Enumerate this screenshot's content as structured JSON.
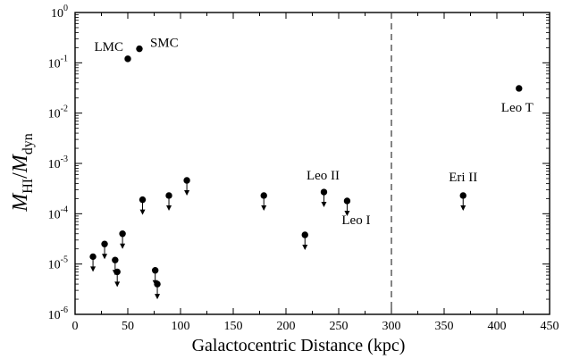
{
  "chart_data": {
    "type": "scatter",
    "title": "",
    "xlabel": "Galactocentric Distance (kpc)",
    "ylabel": {
      "main": "M",
      "sub1": "HI",
      "slash": "/",
      "main2": "M",
      "sub2": "dyn"
    },
    "x_range": [
      0,
      450
    ],
    "y_range": [
      1e-06,
      1
    ],
    "y_scale": "log",
    "grid": false,
    "legend": "none",
    "x_ticks": [
      0,
      50,
      100,
      150,
      200,
      250,
      300,
      350,
      400,
      450
    ],
    "y_ticks": [
      {
        "mant": "10",
        "exp": "-6",
        "value": -6
      },
      {
        "mant": "10",
        "exp": "-5",
        "value": -5
      },
      {
        "mant": "10",
        "exp": "-4",
        "value": -4
      },
      {
        "mant": "10",
        "exp": "-3",
        "value": -3
      },
      {
        "mant": "10",
        "exp": "-2",
        "value": -2
      },
      {
        "mant": "10",
        "exp": "-1",
        "value": -1
      },
      {
        "mant": "10",
        "exp": "0",
        "value": 0
      }
    ],
    "reference_line": {
      "x": 300,
      "style": "dashed"
    },
    "points": [
      {
        "x": 50,
        "y": 0.12,
        "upper_limit": false,
        "label": "LMC"
      },
      {
        "x": 61,
        "y": 0.19,
        "upper_limit": false,
        "label": "SMC"
      },
      {
        "x": 421,
        "y": 0.031,
        "upper_limit": false,
        "label": "Leo T"
      },
      {
        "x": 236,
        "y": 0.00027,
        "upper_limit": true,
        "label": "Leo II"
      },
      {
        "x": 258,
        "y": 0.00018,
        "upper_limit": true,
        "label": "Leo I"
      },
      {
        "x": 368,
        "y": 0.00023,
        "upper_limit": true,
        "label": "Eri II"
      },
      {
        "x": 106,
        "y": 0.00046,
        "upper_limit": true,
        "label": ""
      },
      {
        "x": 89,
        "y": 0.00023,
        "upper_limit": true,
        "label": ""
      },
      {
        "x": 64,
        "y": 0.00019,
        "upper_limit": true,
        "label": ""
      },
      {
        "x": 179,
        "y": 0.00023,
        "upper_limit": true,
        "label": ""
      },
      {
        "x": 218,
        "y": 3.8e-05,
        "upper_limit": true,
        "label": ""
      },
      {
        "x": 45,
        "y": 4e-05,
        "upper_limit": true,
        "label": ""
      },
      {
        "x": 28,
        "y": 2.5e-05,
        "upper_limit": true,
        "label": ""
      },
      {
        "x": 17,
        "y": 1.4e-05,
        "upper_limit": true,
        "label": ""
      },
      {
        "x": 38,
        "y": 1.2e-05,
        "upper_limit": true,
        "label": ""
      },
      {
        "x": 40,
        "y": 7e-06,
        "upper_limit": true,
        "label": ""
      },
      {
        "x": 76,
        "y": 7.5e-06,
        "upper_limit": true,
        "label": ""
      },
      {
        "x": 78,
        "y": 4e-06,
        "upper_limit": true,
        "label": ""
      }
    ]
  }
}
